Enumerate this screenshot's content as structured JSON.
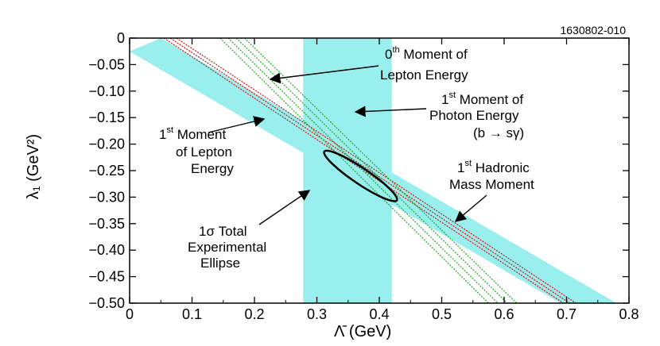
{
  "chart_data": {
    "type": "line",
    "x_label": "Λ̄ (GeV)",
    "y_label": "λ₁ (GeV²)",
    "x_ticks": [
      "0",
      "0.1",
      "0.2",
      "0.3",
      "0.4",
      "0.5",
      "0.6",
      "0.7",
      "0.8"
    ],
    "y_ticks": [
      "0",
      "−0.05",
      "−0.10",
      "−0.15",
      "−0.20",
      "−0.25",
      "−0.30",
      "−0.35",
      "−0.40",
      "−0.45",
      "−0.50"
    ],
    "xlim": [
      0,
      0.8
    ],
    "ylim": [
      -0.5,
      0
    ],
    "reference_id": "1630802-010",
    "bands": [
      {
        "key": "photon_band",
        "kind": "vertical",
        "x_range": [
          0.278,
          0.42
        ],
        "color": "#99eeee"
      },
      {
        "key": "hadronic_band",
        "kind": "diagonal",
        "color": "#99eeee",
        "upper": [
          [
            0.05,
            0
          ],
          [
            0.78,
            -0.5
          ]
        ],
        "lower": [
          [
            0,
            -0.025
          ],
          [
            0.69,
            -0.5
          ]
        ]
      }
    ],
    "red_lines": [
      {
        "points": [
          [
            0.055,
            0
          ],
          [
            0.695,
            -0.5
          ]
        ]
      },
      {
        "points": [
          [
            0.065,
            0
          ],
          [
            0.705,
            -0.5
          ]
        ]
      },
      {
        "points": [
          [
            0.075,
            0
          ],
          [
            0.715,
            -0.5
          ]
        ]
      }
    ],
    "green_lines": [
      {
        "points": [
          [
            0.145,
            0
          ],
          [
            0.575,
            -0.5
          ]
        ]
      },
      {
        "points": [
          [
            0.158,
            0
          ],
          [
            0.59,
            -0.5
          ]
        ]
      },
      {
        "points": [
          [
            0.171,
            0
          ],
          [
            0.605,
            -0.5
          ]
        ]
      },
      {
        "points": [
          [
            0.184,
            0
          ],
          [
            0.62,
            -0.5
          ]
        ]
      }
    ],
    "ellipse": {
      "center": [
        0.37,
        -0.26
      ],
      "width_gev": 0.14,
      "height_gev2": 0.03,
      "angle_deg": 34
    },
    "annotations": {
      "zeroth_lepton": {
        "line1_base": "0",
        "line1_sup": "th",
        "line1_rest": " Moment of",
        "line2": "Lepton Energy"
      },
      "first_photon": {
        "line1_base": "1",
        "line1_sup": "st",
        "line1_rest": " Moment of",
        "line2": "Photon Energy",
        "line3": "(b → sγ)"
      },
      "first_lepton": {
        "line1_base": "1",
        "line1_sup": "st",
        "line1_rest": " Moment",
        "line2": "of Lepton",
        "line3": "Energy"
      },
      "first_hadronic": {
        "line1_base": "1",
        "line1_sup": "st",
        "line1_rest": " Hadronic",
        "line2": "Mass Moment"
      },
      "ellipse_label": {
        "line1": "1σ Total",
        "line2": "Experimental",
        "line3": "Ellipse"
      }
    }
  }
}
